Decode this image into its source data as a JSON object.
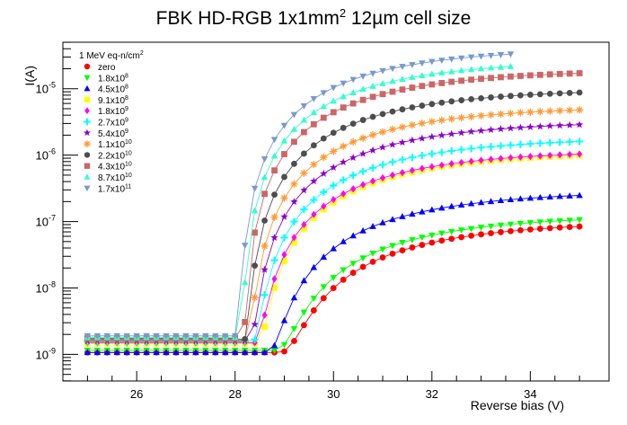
{
  "chart_data": {
    "type": "scatter",
    "title": {
      "main": "FBK HD-RGB 1x1mm",
      "sup": "2",
      "rest": " 12µm cell size"
    },
    "xlabel": "Reverse bias (V)",
    "ylabel": "I(A)",
    "xlim": [
      24.5,
      35.6
    ],
    "ylim_log10": [
      -9.4,
      -4.3
    ],
    "yscale": "log",
    "x_ticks": [
      "26",
      "28",
      "30",
      "32",
      "34"
    ],
    "y_ticks": [
      {
        "base": "10",
        "exp": "-9"
      },
      {
        "base": "10",
        "exp": "-8"
      },
      {
        "base": "10",
        "exp": "-7"
      },
      {
        "base": "10",
        "exp": "-6"
      },
      {
        "base": "10",
        "exp": "-5"
      }
    ],
    "legend": {
      "header": "1 MeV eq-n/cm",
      "header_sup": "2",
      "position": "top-left"
    },
    "x_start": 25.0,
    "x_step": 0.2,
    "series": [
      {
        "name": "zero",
        "sup": "",
        "color": "#ff0000",
        "marker": "circle",
        "base": 1.07e-09,
        "k": 2.3,
        "v0": 28.9,
        "a": 1e-07,
        "vmax": 35.0
      },
      {
        "name": "1.8x10",
        "sup": "8",
        "color": "#00ff00",
        "marker": "triangle-down",
        "base": 1.15e-09,
        "k": 2.3,
        "v0": 28.8,
        "a": 1.25e-07,
        "vmax": 35.0
      },
      {
        "name": "4.5x10",
        "sup": "8",
        "color": "#0000ff",
        "marker": "triangle-up",
        "base": 1.07e-09,
        "k": 2.3,
        "v0": 28.65,
        "a": 2.9e-07,
        "vmax": 35.0
      },
      {
        "name": "9.1x10",
        "sup": "8",
        "color": "#ffff00",
        "marker": "square",
        "base": 1.45e-09,
        "k": 2.3,
        "v0": 28.45,
        "a": 1.15e-06,
        "vmax": 35.0
      },
      {
        "name": "1.8x10",
        "sup": "9",
        "color": "#ff00ff",
        "marker": "diamond",
        "base": 1.5e-09,
        "k": 2.3,
        "v0": 28.4,
        "a": 1.2e-06,
        "vmax": 35.0
      },
      {
        "name": "2.7x10",
        "sup": "9",
        "color": "#00ffff",
        "marker": "cross",
        "base": 1.55e-09,
        "k": 2.3,
        "v0": 28.35,
        "a": 1.85e-06,
        "vmax": 35.0
      },
      {
        "name": "5.4x10",
        "sup": "9",
        "color": "#8b00c8",
        "marker": "star",
        "base": 1.6e-09,
        "k": 2.3,
        "v0": 28.3,
        "a": 3.3e-06,
        "vmax": 35.0
      },
      {
        "name": "1.1x10",
        "sup": "10",
        "color": "#ff9933",
        "marker": "asterisk",
        "base": 1.65e-09,
        "k": 2.3,
        "v0": 28.25,
        "a": 5.5e-06,
        "vmax": 35.0
      },
      {
        "name": "2.2x10",
        "sup": "10",
        "color": "#4d4d4d",
        "marker": "circle",
        "base": 1.7e-09,
        "k": 2.3,
        "v0": 28.2,
        "a": 1e-05,
        "vmax": 35.0
      },
      {
        "name": "4.3x10",
        "sup": "10",
        "color": "#cc6666",
        "marker": "square",
        "base": 1.75e-09,
        "k": 2.3,
        "v0": 28.15,
        "a": 1.95e-05,
        "vmax": 35.0
      },
      {
        "name": "8.7x10",
        "sup": "10",
        "color": "#33ffcc",
        "marker": "triangle-up",
        "base": 1.8e-09,
        "k": 2.3,
        "v0": 28.1,
        "a": 2.75e-05,
        "vmax": 33.6
      },
      {
        "name": "1.7x10",
        "sup": "11",
        "color": "#7799cc",
        "marker": "triangle-down",
        "base": 1.9e-09,
        "k": 2.3,
        "v0": 28.05,
        "a": 4.2e-05,
        "vmax": 33.6
      }
    ]
  }
}
